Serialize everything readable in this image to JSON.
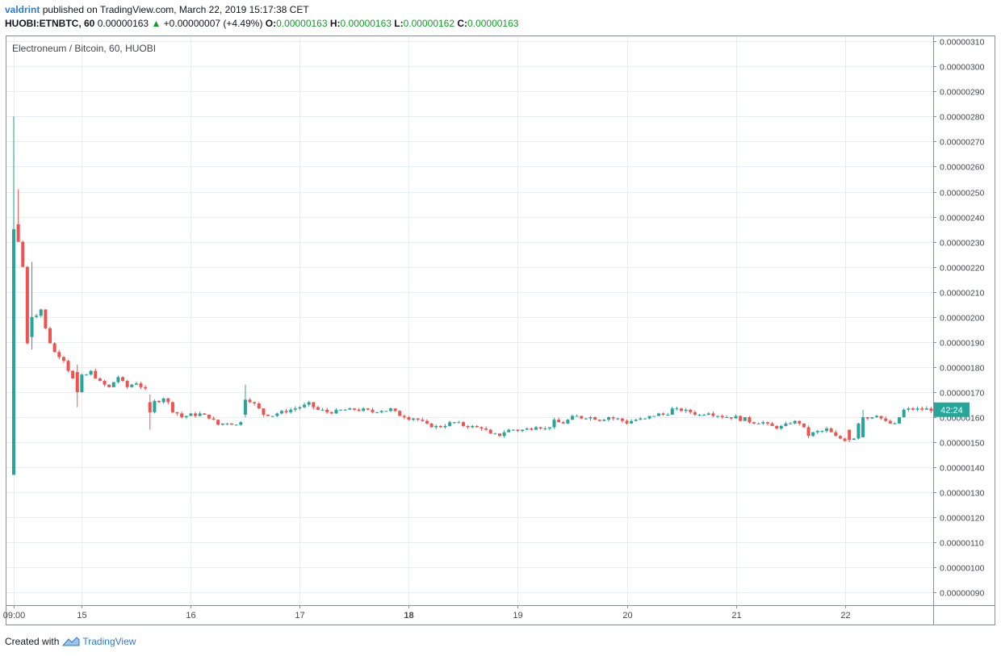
{
  "header": {
    "author": "valdrint",
    "published_text": "published on TradingView.com, March 22, 2019 15:17:38 CET",
    "symbol_interval": "HUOBI:ETNBTC, 60",
    "last_price": "0.00000163",
    "change": "+0.00000007 (+4.49%)",
    "change_icon": "triangle-up-icon",
    "open_label": "O:",
    "open": "0.00000163",
    "high_label": "H:",
    "high": "0.00000163",
    "low_label": "L:",
    "low": "0.00000162",
    "close_label": "C:",
    "close": "0.00000163"
  },
  "footer": {
    "created_with": "Created with",
    "brand": "TradingView"
  },
  "colors": {
    "up": "#26a69a",
    "down": "#ef5350",
    "grid": "#e6eef4",
    "axis": "#8a8e99",
    "price_tag": "#26a69a"
  },
  "chart_data": {
    "type": "candlestick",
    "title": "Electroneum / Bitcoin, 60, HUOBI",
    "y_ticks": [
      "0.00000310",
      "0.00000300",
      "0.00000290",
      "0.00000280",
      "0.00000270",
      "0.00000260",
      "0.00000250",
      "0.00000240",
      "0.00000230",
      "0.00000220",
      "0.00000210",
      "0.00000200",
      "0.00000190",
      "0.00000180",
      "0.00000170",
      "0.00000160",
      "0.00000150",
      "0.00000140",
      "0.00000130",
      "0.00000120",
      "0.00000110",
      "0.00000100",
      "0.00000090"
    ],
    "x_ticks": [
      "09:00",
      "15",
      "16",
      "17",
      "18",
      "19",
      "20",
      "21",
      "22"
    ],
    "current_price_tag": "42:24",
    "current_price": 1.63e-06,
    "hours_per_day": 24,
    "x_tick_positions_hours": [
      0,
      15,
      39,
      63,
      87,
      111,
      135,
      159,
      183
    ],
    "total_hours": 203,
    "ylim": [
      8.5e-07,
      3.12e-06
    ],
    "anchors": [
      [
        0,
        235
      ],
      [
        0.7,
        237
      ],
      [
        2,
        220
      ],
      [
        3,
        190
      ],
      [
        4,
        195
      ],
      [
        5,
        201
      ],
      [
        6,
        203
      ],
      [
        7,
        195
      ],
      [
        8,
        190
      ],
      [
        9,
        186
      ],
      [
        11,
        183
      ],
      [
        13,
        175
      ],
      [
        15,
        176
      ],
      [
        17,
        178
      ],
      [
        19,
        174
      ],
      [
        21,
        172
      ],
      [
        23,
        176
      ],
      [
        25,
        172
      ],
      [
        27,
        174
      ],
      [
        29,
        171
      ],
      [
        31,
        166
      ],
      [
        33,
        168
      ],
      [
        35,
        163
      ],
      [
        37,
        160
      ],
      [
        39,
        161
      ],
      [
        41,
        161
      ],
      [
        43,
        160
      ],
      [
        45,
        157
      ],
      [
        47,
        158
      ],
      [
        49,
        157
      ],
      [
        51,
        160
      ],
      [
        52,
        167
      ],
      [
        53,
        165
      ],
      [
        55,
        161
      ],
      [
        57,
        161
      ],
      [
        59,
        162
      ],
      [
        61,
        163
      ],
      [
        63,
        164
      ],
      [
        65,
        165
      ],
      [
        67,
        163
      ],
      [
        69,
        162
      ],
      [
        71,
        162
      ],
      [
        73,
        163
      ],
      [
        75,
        163
      ],
      [
        77,
        163
      ],
      [
        79,
        162
      ],
      [
        81,
        163
      ],
      [
        83,
        163
      ],
      [
        85,
        161
      ],
      [
        87,
        160
      ],
      [
        89,
        159
      ],
      [
        91,
        157
      ],
      [
        93,
        156
      ],
      [
        95,
        157
      ],
      [
        97,
        158
      ],
      [
        99,
        157
      ],
      [
        101,
        156
      ],
      [
        103,
        156
      ],
      [
        105,
        153
      ],
      [
        107,
        153
      ],
      [
        109,
        155
      ],
      [
        111,
        155
      ],
      [
        113,
        155
      ],
      [
        115,
        157
      ],
      [
        117,
        155
      ],
      [
        119,
        158
      ],
      [
        121,
        158
      ],
      [
        123,
        160
      ],
      [
        125,
        160
      ],
      [
        127,
        160
      ],
      [
        129,
        159
      ],
      [
        131,
        160
      ],
      [
        133,
        159
      ],
      [
        135,
        158
      ],
      [
        137,
        159
      ],
      [
        139,
        159
      ],
      [
        141,
        161
      ],
      [
        143,
        161
      ],
      [
        145,
        163
      ],
      [
        147,
        163
      ],
      [
        149,
        162
      ],
      [
        151,
        161
      ],
      [
        153,
        162
      ],
      [
        155,
        161
      ],
      [
        157,
        160
      ],
      [
        159,
        160
      ],
      [
        161,
        159
      ],
      [
        163,
        158
      ],
      [
        165,
        158
      ],
      [
        167,
        156
      ],
      [
        169,
        156
      ],
      [
        171,
        158
      ],
      [
        173,
        158
      ],
      [
        175,
        153
      ],
      [
        177,
        154
      ],
      [
        179,
        155
      ],
      [
        181,
        152
      ],
      [
        183,
        151
      ],
      [
        185,
        152
      ],
      [
        186,
        158
      ],
      [
        188,
        160
      ],
      [
        190,
        161
      ],
      [
        192,
        158
      ],
      [
        194,
        157
      ],
      [
        196,
        163
      ],
      [
        199,
        163
      ]
    ],
    "spikes": [
      {
        "hour": 0,
        "high": 280,
        "low": 137,
        "open": 137,
        "close": 235
      },
      {
        "hour": 1,
        "high": 251,
        "low": 230,
        "open": 237,
        "close": 230
      },
      {
        "hour": 4,
        "high": 222,
        "low": 187,
        "open": 192,
        "close": 200
      },
      {
        "hour": 14,
        "high": 181,
        "low": 164,
        "open": 178,
        "close": 170
      },
      {
        "hour": 30,
        "high": 169,
        "low": 155,
        "open": 166,
        "close": 162
      },
      {
        "hour": 51,
        "high": 173,
        "low": 160,
        "open": 161,
        "close": 167
      },
      {
        "hour": 184,
        "high": 155,
        "low": 150,
        "open": 155,
        "close": 151
      },
      {
        "hour": 187,
        "high": 163,
        "low": 152,
        "open": 152,
        "close": 160
      }
    ],
    "value_scale": 1e-08
  }
}
